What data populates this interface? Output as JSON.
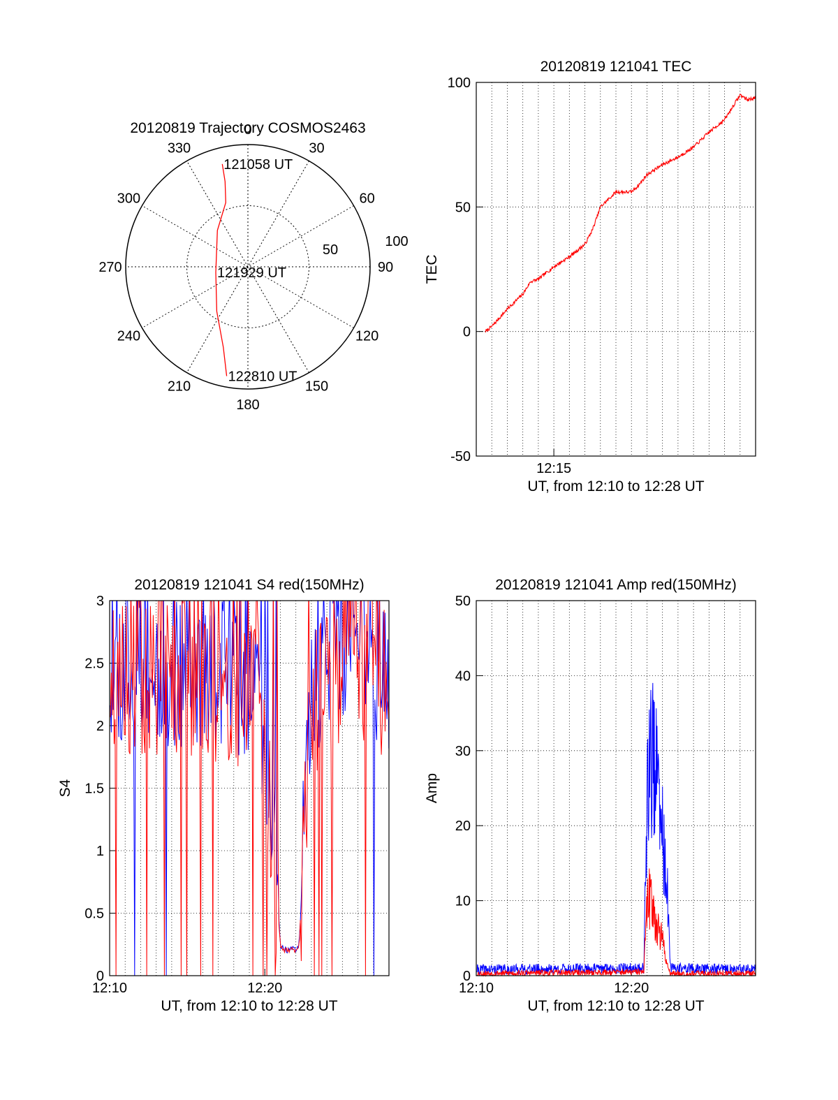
{
  "chart_data": [
    {
      "type": "polar",
      "title": "20120819 Trajectory COSMOS2463",
      "angle_labels": [
        "0",
        "30",
        "60",
        "90",
        "120",
        "150",
        "180",
        "210",
        "240",
        "270",
        "300",
        "330"
      ],
      "radius_labels": [
        "50",
        "100"
      ],
      "series": [
        {
          "color": "#ff0000",
          "points": [
            {
              "az": 346,
              "el": 12
            },
            {
              "az": 345,
              "el": 25
            },
            {
              "az": 341,
              "el": 40
            },
            {
              "az": 320,
              "el": 55
            },
            {
              "az": 260,
              "el": 66
            },
            {
              "az": 215,
              "el": 50
            },
            {
              "az": 197,
              "el": 28
            },
            {
              "az": 191,
              "el": 8
            }
          ]
        }
      ],
      "annotations": [
        {
          "text": "121058 UT",
          "az": 346,
          "el": 12
        },
        {
          "text": "121929 UT",
          "az": 260,
          "el": 66
        },
        {
          "text": "122810 UT",
          "az": 191,
          "el": 8
        }
      ]
    },
    {
      "type": "line",
      "title": "20120819 121041 TEC",
      "xlabel": "UT, from 12:10 to 12:28 UT",
      "ylabel": "TEC",
      "xlim": [
        0,
        18
      ],
      "ylim": [
        -50,
        100
      ],
      "xticks": [
        {
          "value": 5,
          "label": "12:15"
        }
      ],
      "yticks": [
        "-50",
        "0",
        "50",
        "100"
      ],
      "grid": true,
      "series": [
        {
          "color": "#ff0000",
          "x": [
            0.6,
            1,
            2,
            3,
            3.5,
            4,
            5,
            6,
            7,
            7.5,
            8,
            9,
            10,
            10.5,
            11,
            12,
            13,
            14,
            15,
            16,
            16.5,
            17,
            17.5,
            18
          ],
          "y": [
            0,
            2,
            9,
            15,
            20,
            21,
            26,
            30,
            35,
            41,
            50,
            56,
            56,
            59,
            63,
            67,
            70,
            74,
            80,
            85,
            90,
            95,
            93,
            94
          ]
        }
      ]
    },
    {
      "type": "line",
      "title": "20120819 121041 S4 red(150MHz)",
      "xlabel": "UT, from 12:10 to 12:28 UT",
      "ylabel": "S4",
      "xlim": [
        0,
        18
      ],
      "ylim": [
        0,
        3
      ],
      "xticks": [
        {
          "value": 0,
          "label": "12:10"
        },
        {
          "value": 10,
          "label": "12:20"
        }
      ],
      "yticks": [
        "0",
        "0.5",
        "1",
        "1.5",
        "2",
        "2.5",
        "3"
      ],
      "grid": true,
      "series": [
        {
          "color": "#ff0000",
          "x": [
            0,
            9.5,
            10,
            10.5,
            11,
            11.5,
            12.2,
            13,
            14,
            15,
            16,
            17,
            18
          ],
          "y": [
            2.4,
            2.3,
            1.7,
            1.3,
            0.22,
            0.2,
            0.21,
            2.2,
            2.4,
            2.5,
            2.6,
            2.4,
            2.3
          ]
        },
        {
          "color": "#0000ff",
          "x": [
            0,
            9.5,
            10,
            10.5,
            11,
            11.5,
            12.2,
            13,
            14,
            15,
            16,
            17,
            18
          ],
          "y": [
            2.5,
            2.4,
            1.9,
            1.4,
            0.23,
            0.2,
            0.22,
            2.3,
            2.6,
            2.7,
            2.8,
            2.5,
            2.4
          ]
        }
      ]
    },
    {
      "type": "line",
      "title": "20120819 121041 Amp red(150MHz)",
      "xlabel": "UT, from 12:10 to 12:28 UT",
      "ylabel": "Amp",
      "xlim": [
        0,
        18
      ],
      "ylim": [
        0,
        50
      ],
      "xticks": [
        {
          "value": 0,
          "label": "12:10"
        },
        {
          "value": 10,
          "label": "12:20"
        }
      ],
      "yticks": [
        "0",
        "10",
        "20",
        "30",
        "40",
        "50"
      ],
      "grid": true,
      "series": [
        {
          "color": "#ff0000",
          "x": [
            0,
            10.8,
            11.0,
            11.3,
            11.6,
            12.0,
            12.3,
            12.5,
            18
          ],
          "y": [
            0.3,
            0.5,
            12,
            14,
            9,
            6,
            2,
            0.3,
            0.3
          ]
        },
        {
          "color": "#0000ff",
          "x": [
            0,
            10.8,
            11.0,
            11.3,
            11.6,
            12.0,
            12.3,
            12.5,
            18
          ],
          "y": [
            0.8,
            1,
            30,
            40,
            33,
            24,
            15,
            1,
            0.8
          ]
        }
      ]
    }
  ]
}
